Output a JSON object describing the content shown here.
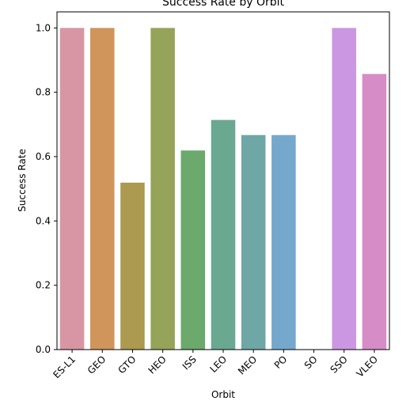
{
  "chart_data": {
    "type": "bar",
    "title": "Success Rate by Orbit",
    "xlabel": "Orbit",
    "ylabel": "Success Rate",
    "categories": [
      "ES-L1",
      "GEO",
      "GTO",
      "HEO",
      "ISS",
      "LEO",
      "MEO",
      "PO",
      "SO",
      "SSO",
      "VLEO"
    ],
    "values": [
      1.0,
      1.0,
      0.519,
      1.0,
      0.619,
      0.714,
      0.667,
      0.667,
      0.0,
      1.0,
      0.857
    ],
    "colors": [
      "#d896a4",
      "#cf955b",
      "#ab9a4f",
      "#95a458",
      "#6ba96c",
      "#6aa891",
      "#6ea7a6",
      "#75a8cc",
      "#a6a2d9",
      "#cc97e2",
      "#d68cc6"
    ],
    "ylim": [
      0,
      1.05
    ],
    "yticks": [
      {
        "value": 0.0,
        "label": "0.0"
      },
      {
        "value": 0.2,
        "label": "0.2"
      },
      {
        "value": 0.4,
        "label": "0.4"
      },
      {
        "value": 0.6,
        "label": "0.6"
      },
      {
        "value": 0.8,
        "label": "0.8"
      },
      {
        "value": 1.0,
        "label": "1.0"
      }
    ],
    "grid": false,
    "legend": "none"
  }
}
